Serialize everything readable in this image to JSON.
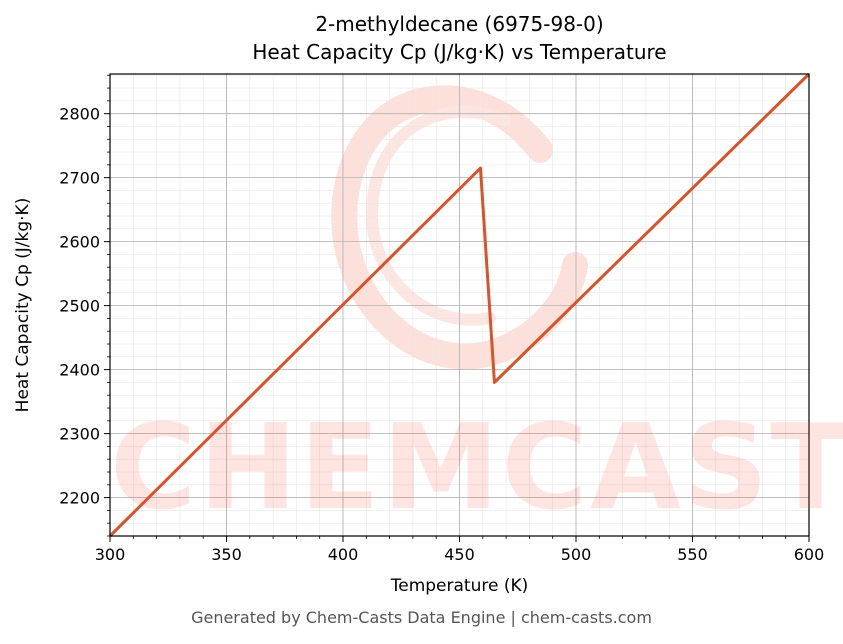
{
  "title_line1": "2-methyldecane (6975-98-0)",
  "title_line2": "Heat Capacity Cp (J/kg·K) vs Temperature",
  "footer": "Generated by Chem-Casts Data Engine | chem-casts.com",
  "watermark": "CHEMCASTS",
  "colors": {
    "line": "#d9532a",
    "grid_major": "#b0b0b0",
    "grid_minor": "#e6e6e6",
    "watermark": "#fde0da"
  },
  "chart_data": {
    "type": "line",
    "xlabel": "Temperature (K)",
    "ylabel": "Heat Capacity Cp (J/kg·K)",
    "xlim": [
      300,
      600
    ],
    "ylim": [
      2140,
      2862
    ],
    "xticks": [
      300,
      350,
      400,
      450,
      500,
      550,
      600
    ],
    "yticks": [
      2200,
      2300,
      2400,
      2500,
      2600,
      2700,
      2800
    ],
    "grid": true,
    "series": [
      {
        "x": [
          300,
          459,
          465,
          600
        ],
        "y": [
          2140,
          2715,
          2380,
          2862
        ]
      }
    ]
  }
}
